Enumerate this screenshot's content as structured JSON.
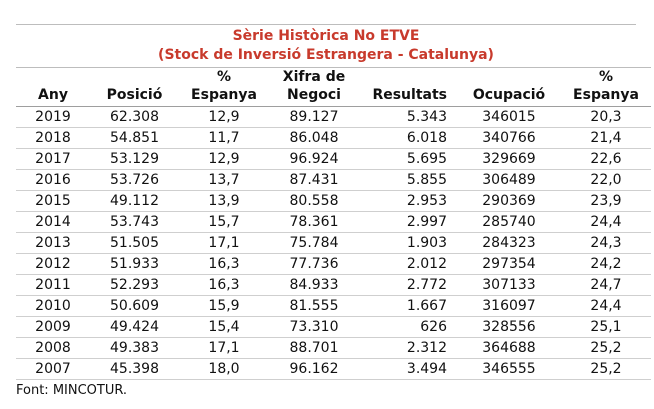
{
  "title": {
    "line1": "Sèrie Històrica No ETVE",
    "line2": "(Stock de Inversió Estrangera - Catalunya)"
  },
  "table": {
    "headers": [
      {
        "top": "",
        "bottom": "Any"
      },
      {
        "top": "",
        "bottom": "Posició"
      },
      {
        "top": "%",
        "bottom": "Espanya"
      },
      {
        "top": "Xifra de",
        "bottom": "Negoci"
      },
      {
        "top": "",
        "bottom": "Resultats"
      },
      {
        "top": "",
        "bottom": "Ocupació"
      },
      {
        "top": "%",
        "bottom": "Espanya"
      }
    ],
    "rows": [
      [
        "2019",
        "62.308",
        "12,9",
        "89.127",
        "5.343",
        "346015",
        "20,3"
      ],
      [
        "2018",
        "54.851",
        "11,7",
        "86.048",
        "6.018",
        "340766",
        "21,4"
      ],
      [
        "2017",
        "53.129",
        "12,9",
        "96.924",
        "5.695",
        "329669",
        "22,6"
      ],
      [
        "2016",
        "53.726",
        "13,7",
        "87.431",
        "5.855",
        "306489",
        "22,0"
      ],
      [
        "2015",
        "49.112",
        "13,9",
        "80.558",
        "2.953",
        "290369",
        "23,9"
      ],
      [
        "2014",
        "53.743",
        "15,7",
        "78.361",
        "2.997",
        "285740",
        "24,4"
      ],
      [
        "2013",
        "51.505",
        "17,1",
        "75.784",
        "1.903",
        "284323",
        "24,3"
      ],
      [
        "2012",
        "51.933",
        "16,3",
        "77.736",
        "2.012",
        "297354",
        "24,2"
      ],
      [
        "2011",
        "52.293",
        "16,3",
        "84.933",
        "2.772",
        "307133",
        "24,7"
      ],
      [
        "2010",
        "50.609",
        "15,9",
        "81.555",
        "1.667",
        "316097",
        "24,4"
      ],
      [
        "2009",
        "49.424",
        "15,4",
        "73.310",
        "626",
        "328556",
        "25,1"
      ],
      [
        "2008",
        "49.383",
        "17,1",
        "88.701",
        "2.312",
        "364688",
        "25,2"
      ],
      [
        "2007",
        "45.398",
        "18,0",
        "96.162",
        "3.494",
        "346555",
        "25,2"
      ]
    ]
  },
  "footer": "Font: MINCOTUR.",
  "colors": {
    "title": "#c83a2c"
  }
}
